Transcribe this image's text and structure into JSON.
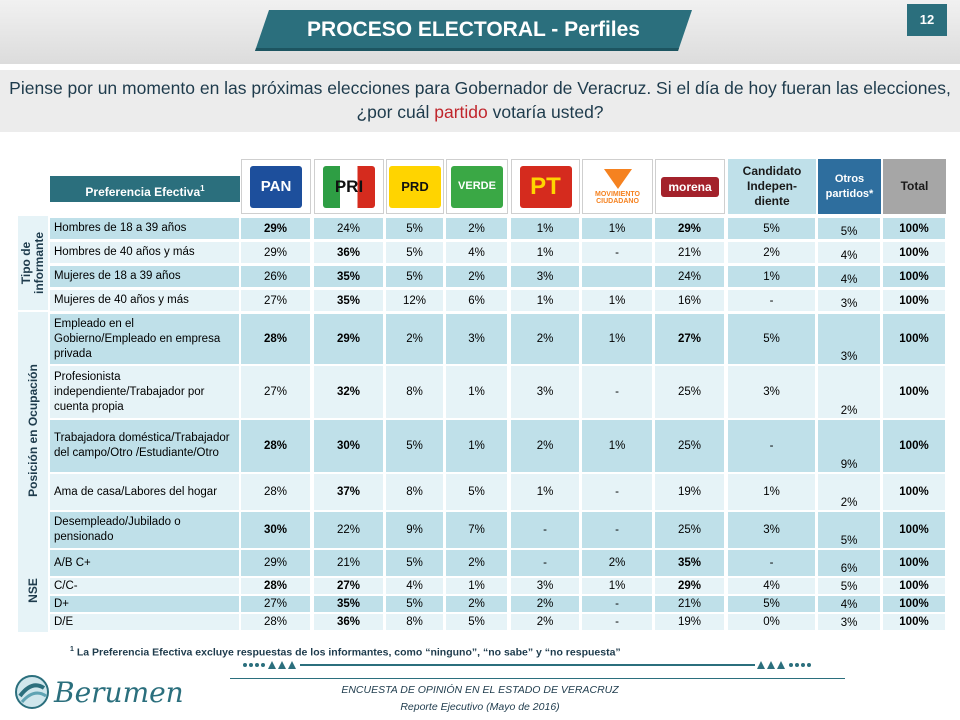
{
  "header": {
    "title": "PROCESO ELECTORAL - Perfiles",
    "page_number": "12"
  },
  "question": {
    "part1": "Piense por un momento en las próximas elecciones para Gobernador de Veracruz. Si el día de hoy fueran las elecciones, ¿por cuál ",
    "highlight": "partido",
    "part2": " votaría usted?"
  },
  "table": {
    "pref_label": "Preferencia Efectiva",
    "pref_sup": "1",
    "columns": [
      {
        "name": "PAN",
        "type": "logo"
      },
      {
        "name": "PRI",
        "type": "logo"
      },
      {
        "name": "PRD",
        "type": "logo"
      },
      {
        "name": "VERDE",
        "type": "logo"
      },
      {
        "name": "PT",
        "type": "logo"
      },
      {
        "name": "MOVIMIENTO CIUDADANO",
        "type": "logo"
      },
      {
        "name": "morena",
        "type": "logo"
      },
      {
        "name": "Candidato Indepen- diente",
        "type": "text"
      },
      {
        "name": "Otros partidos*",
        "type": "text"
      },
      {
        "name": "Total",
        "type": "text"
      }
    ],
    "groups": [
      {
        "label": "Tipo de informante",
        "rows": [
          {
            "label": "Hombres de 18 a 39 años",
            "values": [
              "29%",
              "24%",
              "5%",
              "2%",
              "1%",
              "1%",
              "29%",
              "5%",
              "5%",
              "100%"
            ],
            "bold": [
              0,
              6,
              9
            ]
          },
          {
            "label": "Hombres de 40 años y más",
            "values": [
              "29%",
              "36%",
              "5%",
              "4%",
              "1%",
              "-",
              "21%",
              "2%",
              "4%",
              "100%"
            ],
            "bold": [
              1,
              9
            ]
          },
          {
            "label": "Mujeres de 18 a 39 años",
            "values": [
              "26%",
              "35%",
              "5%",
              "2%",
              "3%",
              "",
              "24%",
              "1%",
              "4%",
              "100%"
            ],
            "bold": [
              1,
              9
            ]
          },
          {
            "label": "Mujeres de 40 años y más",
            "values": [
              "27%",
              "35%",
              "12%",
              "6%",
              "1%",
              "1%",
              "16%",
              "-",
              "3%",
              "100%"
            ],
            "bold": [
              1,
              9
            ]
          }
        ]
      },
      {
        "label": "Posición en Ocupación",
        "rows": [
          {
            "label": "Empleado en el Gobierno/Empleado en empresa privada",
            "values": [
              "28%",
              "29%",
              "2%",
              "3%",
              "2%",
              "1%",
              "27%",
              "5%",
              "3%",
              "100%"
            ],
            "bold": [
              0,
              1,
              6,
              9
            ]
          },
          {
            "label": "Profesionista independiente/Trabajador por cuenta propia",
            "values": [
              "27%",
              "32%",
              "8%",
              "1%",
              "3%",
              "-",
              "25%",
              "3%",
              "2%",
              "100%"
            ],
            "bold": [
              1,
              9
            ]
          },
          {
            "label": "Trabajadora doméstica/Trabajador del campo/Otro /Estudiante/Otro",
            "values": [
              "28%",
              "30%",
              "5%",
              "1%",
              "2%",
              "1%",
              "25%",
              "-",
              "9%",
              "100%"
            ],
            "bold": [
              0,
              1,
              9
            ]
          },
          {
            "label": "Ama de casa/Labores del hogar",
            "values": [
              "28%",
              "37%",
              "8%",
              "5%",
              "1%",
              "-",
              "19%",
              "1%",
              "2%",
              "100%"
            ],
            "bold": [
              1,
              9
            ]
          },
          {
            "label": "Desempleado/Jubilado o pensionado",
            "values": [
              "30%",
              "22%",
              "9%",
              "7%",
              "-",
              "-",
              "25%",
              "3%",
              "5%",
              "100%"
            ],
            "bold": [
              0,
              9
            ]
          }
        ]
      },
      {
        "label": "NSE",
        "rows": [
          {
            "label": "A/B C+",
            "values": [
              "29%",
              "21%",
              "5%",
              "2%",
              "-",
              "2%",
              "35%",
              "-",
              "6%",
              "100%"
            ],
            "bold": [
              6,
              9
            ]
          },
          {
            "label": "C/C-",
            "values": [
              "28%",
              "27%",
              "4%",
              "1%",
              "3%",
              "1%",
              "29%",
              "4%",
              "5%",
              "100%"
            ],
            "bold": [
              0,
              1,
              6,
              9
            ]
          },
          {
            "label": "D+",
            "values": [
              "27%",
              "35%",
              "5%",
              "2%",
              "2%",
              "-",
              "21%",
              "5%",
              "4%",
              "100%"
            ],
            "bold": [
              1,
              9
            ]
          },
          {
            "label": "D/E",
            "values": [
              "28%",
              "36%",
              "8%",
              "5%",
              "2%",
              "-",
              "19%",
              "0%",
              "3%",
              "100%"
            ],
            "bold": [
              1,
              9
            ]
          }
        ]
      }
    ]
  },
  "footnote": {
    "sup": "1",
    "text": " La Preferencia Efectiva excluye respuestas de los informantes, como “ninguno”,  “no sabe” y “no respuesta”"
  },
  "footer": {
    "brand": "Berumen",
    "line1": "ENCUESTA DE OPINIÓN EN EL ESTADO DE  VERACRUZ",
    "line2": "Reporte  Ejecutivo  (Mayo de 2016)"
  },
  "colors": {
    "teal": "#2b6f7d",
    "row_a": "#bfe0e9",
    "row_b": "#e6f3f7",
    "otros_head": "#2e6e9e",
    "total_head": "#a6a6a6"
  }
}
